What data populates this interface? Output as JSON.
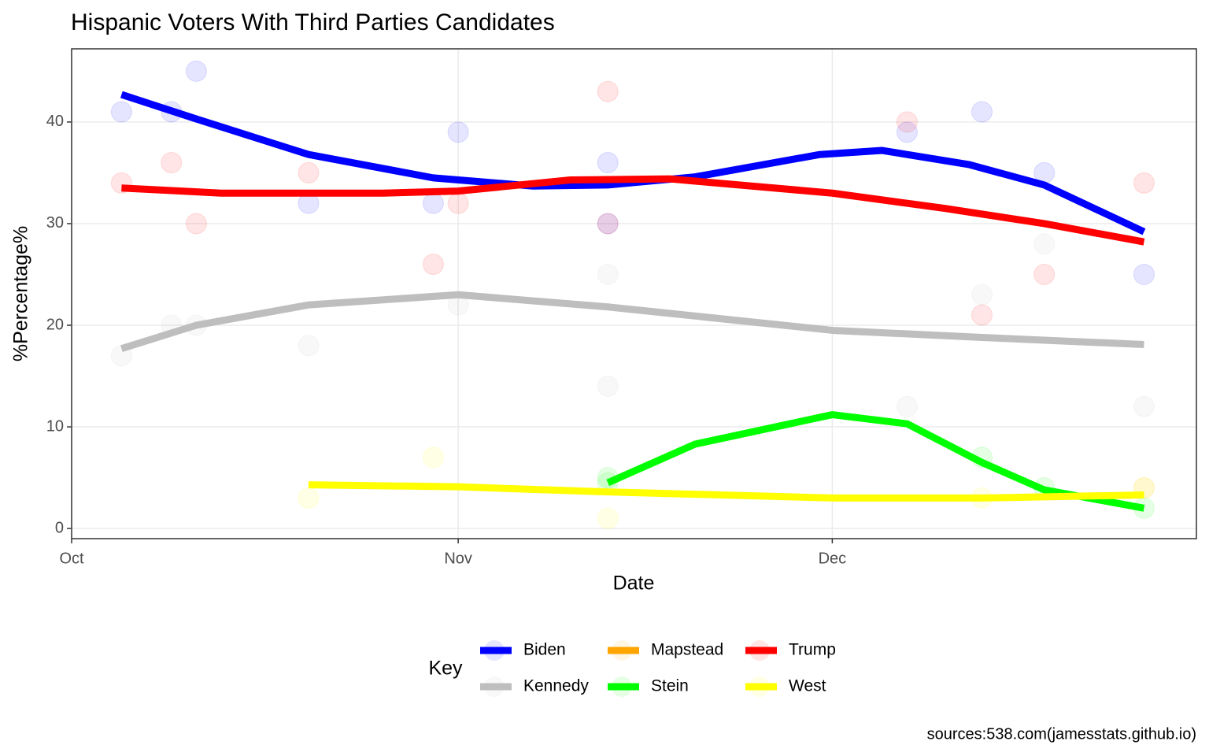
{
  "chart_data": {
    "type": "scatter",
    "title": "Hispanic Voters With Third Parties Candidates",
    "x_label": "Date",
    "y_label": "%Percentage%",
    "legend_title": "Key",
    "caption": "sources:538.com(jamesstats.github.io)",
    "xlim": [
      0,
      90.2
    ],
    "xticks": [
      {
        "value": 0,
        "label": "Oct"
      },
      {
        "value": 31,
        "label": "Nov"
      },
      {
        "value": 61,
        "label": "Dec"
      }
    ],
    "ylim": [
      -1,
      47.2
    ],
    "yticks": [
      0,
      10,
      20,
      30,
      40
    ],
    "grid": true,
    "legend_position": "bottom",
    "series": [
      {
        "name": "Biden",
        "color": "#0000ff",
        "x": [
          4,
          8,
          10,
          19,
          29,
          31,
          43,
          43,
          67,
          73,
          78,
          86
        ],
        "values": [
          41,
          41,
          45,
          32,
          32,
          39,
          36,
          30,
          39,
          41,
          35,
          25
        ],
        "smooth_x": [
          4,
          10,
          19,
          29,
          37,
          43,
          50,
          60,
          65,
          72,
          78,
          86
        ],
        "smooth_values": [
          42.7,
          40.3,
          36.8,
          34.5,
          33.7,
          33.8,
          34.6,
          36.8,
          37.2,
          35.8,
          33.8,
          29.2
        ]
      },
      {
        "name": "Kennedy",
        "color": "#bebebe",
        "x": [
          4,
          8,
          10,
          19,
          31,
          43,
          43,
          67,
          73,
          78,
          86
        ],
        "values": [
          17,
          20,
          20,
          18,
          22,
          25,
          14,
          12,
          23,
          28,
          12
        ],
        "smooth_x": [
          4,
          10,
          19,
          31,
          43,
          61,
          73,
          86
        ],
        "smooth_values": [
          17.7,
          20,
          22,
          23,
          21.8,
          19.5,
          18.8,
          18.1
        ]
      },
      {
        "name": "Mapstead",
        "color": "#ffa500",
        "x": [
          86
        ],
        "values": [
          4
        ],
        "smooth_x": [],
        "smooth_values": []
      },
      {
        "name": "Stein",
        "color": "#00ff00",
        "x": [
          43,
          43,
          73,
          78,
          86
        ],
        "values": [
          5,
          4.5,
          7,
          4,
          2
        ],
        "smooth_x": [
          43,
          50,
          61,
          67,
          73,
          78,
          86
        ],
        "smooth_values": [
          4.5,
          8.3,
          11.2,
          10.3,
          6.5,
          3.8,
          2
        ]
      },
      {
        "name": "Trump",
        "color": "#ff0000",
        "x": [
          4,
          8,
          10,
          19,
          29,
          31,
          43,
          43,
          67,
          73,
          78,
          86
        ],
        "values": [
          34,
          36,
          30,
          35,
          26,
          32,
          43,
          30,
          40,
          21,
          25,
          34
        ],
        "smooth_x": [
          4,
          12,
          25,
          31,
          40,
          48,
          61,
          70,
          78,
          86
        ],
        "smooth_values": [
          33.5,
          33,
          33,
          33.2,
          34.3,
          34.4,
          33,
          31.5,
          30,
          28.2
        ]
      },
      {
        "name": "West",
        "color": "#ffff00",
        "x": [
          19,
          29,
          43,
          73,
          86
        ],
        "values": [
          3,
          7,
          1,
          3,
          4
        ],
        "smooth_x": [
          19,
          31,
          43,
          61,
          73,
          86
        ],
        "smooth_values": [
          4.3,
          4.1,
          3.6,
          3,
          3,
          3.3
        ]
      }
    ]
  }
}
